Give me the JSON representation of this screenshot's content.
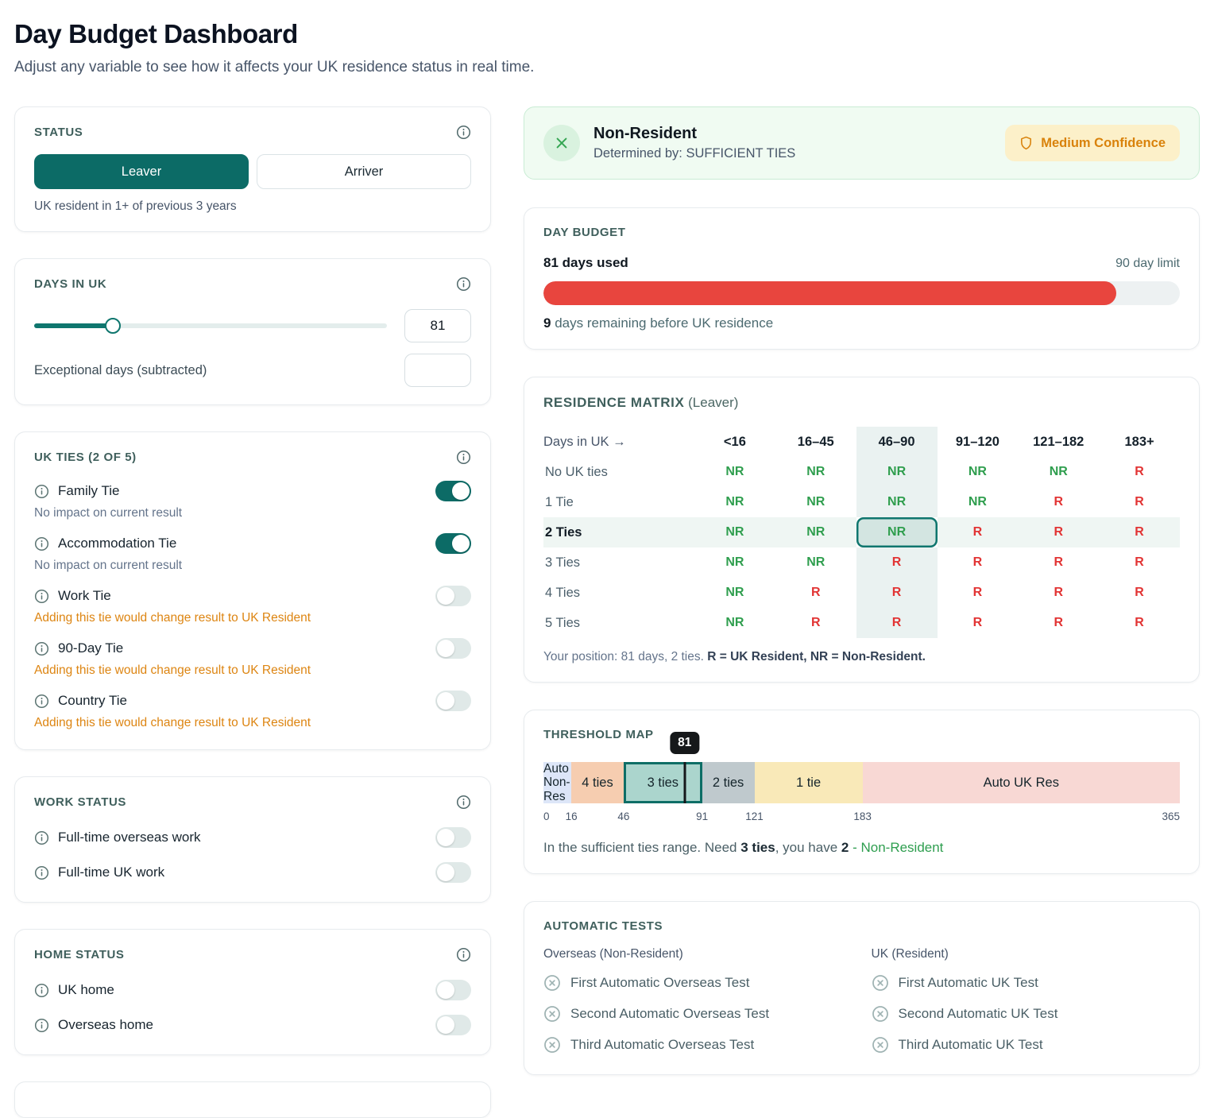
{
  "page": {
    "title": "Day Budget Dashboard",
    "subtitle": "Adjust any variable to see how it affects your UK residence status in real time."
  },
  "colors": {
    "accent_teal": "#0c6b66",
    "warning_orange": "#dd8512",
    "positive_green": "#2f9e4e",
    "negative_red": "#e23434",
    "budget_bar_red": "#e8453e",
    "badge_bg": "#fcf0c9",
    "badge_text": "#d9820b",
    "banner_bg": "#f0fbf2"
  },
  "status_card": {
    "title": "STATUS",
    "options": {
      "leaver": "Leaver",
      "arriver": "Arriver"
    },
    "selected": "Leaver",
    "note": "UK resident in 1+ of previous 3 years"
  },
  "days_card": {
    "title": "DAYS IN UK",
    "value": 81,
    "value_str": "81",
    "max": 365,
    "exceptional_label": "Exceptional days (subtracted)"
  },
  "ties_card": {
    "title": "UK TIES (2 OF 5)",
    "items": [
      {
        "label": "Family Tie",
        "on": true,
        "note": "No impact on current result",
        "warn": false
      },
      {
        "label": "Accommodation Tie",
        "on": true,
        "note": "No impact on current result",
        "warn": false
      },
      {
        "label": "Work Tie",
        "on": false,
        "note": "Adding this tie would change result to UK Resident",
        "warn": true
      },
      {
        "label": "90-Day Tie",
        "on": false,
        "note": "Adding this tie would change result to UK Resident",
        "warn": true
      },
      {
        "label": "Country Tie",
        "on": false,
        "note": "Adding this tie would change result to UK Resident",
        "warn": true
      }
    ]
  },
  "work_card": {
    "title": "WORK STATUS",
    "items": [
      {
        "label": "Full-time overseas work",
        "on": false
      },
      {
        "label": "Full-time UK work",
        "on": false
      }
    ]
  },
  "home_card": {
    "title": "HOME STATUS",
    "items": [
      {
        "label": "UK home",
        "on": false
      },
      {
        "label": "Overseas home",
        "on": false
      }
    ]
  },
  "result_banner": {
    "title": "Non-Resident",
    "subtitle": "Determined by: SUFFICIENT TIES",
    "badge": "Medium Confidence"
  },
  "day_budget": {
    "title": "DAY BUDGET",
    "used": 81,
    "limit": 90,
    "used_label": "81 days used",
    "limit_label": "90 day limit",
    "remaining_value": "9",
    "remaining_text": " days remaining before UK residence"
  },
  "matrix": {
    "title": "RESIDENCE MATRIX",
    "title_suffix": " (Leaver)",
    "corner": "Days in UK →",
    "columns": [
      "<16",
      "16–45",
      "46–90",
      "91–120",
      "121–182",
      "183+"
    ],
    "rows": [
      {
        "label": "No UK ties",
        "cells": [
          "NR",
          "NR",
          "NR",
          "NR",
          "NR",
          "R"
        ]
      },
      {
        "label": "1 Tie",
        "cells": [
          "NR",
          "NR",
          "NR",
          "NR",
          "R",
          "R"
        ]
      },
      {
        "label": "2 Ties",
        "cells": [
          "NR",
          "NR",
          "NR",
          "R",
          "R",
          "R"
        ]
      },
      {
        "label": "3 Ties",
        "cells": [
          "NR",
          "NR",
          "R",
          "R",
          "R",
          "R"
        ]
      },
      {
        "label": "4 Ties",
        "cells": [
          "NR",
          "R",
          "R",
          "R",
          "R",
          "R"
        ]
      },
      {
        "label": "5 Ties",
        "cells": [
          "NR",
          "R",
          "R",
          "R",
          "R",
          "R"
        ]
      }
    ],
    "highlight_column": 2,
    "highlight_row": 2,
    "selected_cell": {
      "row": 2,
      "col": 2
    },
    "footnote_gray": "Your position: 81 days, 2 ties. ",
    "footnote_dark": "R = UK Resident, NR = Non-Resident."
  },
  "threshold": {
    "title": "THRESHOLD MAP",
    "tooltip": "81",
    "marker_day": 81,
    "total": 365,
    "segments": [
      {
        "label": "Auto Non-Res",
        "from": 0,
        "to": 16,
        "color": "#dde6f8",
        "selected": false
      },
      {
        "label": "4 ties",
        "from": 16,
        "to": 46,
        "color": "#f6cdb0",
        "selected": false
      },
      {
        "label": "3 ties",
        "from": 46,
        "to": 91,
        "color": "#abd5cd",
        "selected": true
      },
      {
        "label": "2 ties",
        "from": 91,
        "to": 121,
        "color": "#bfc9cd",
        "selected": false
      },
      {
        "label": "1 tie",
        "from": 121,
        "to": 183,
        "color": "#f9e9b8",
        "selected": false
      },
      {
        "label": "Auto UK Res",
        "from": 183,
        "to": 365,
        "color": "#f8d8d4",
        "selected": false
      }
    ],
    "axis": [
      0,
      16,
      46,
      91,
      121,
      183,
      365
    ],
    "caption": {
      "p1": "In the sufficient ties range. Need ",
      "p2": "3 ties",
      "p3": ", you have ",
      "p4": "2",
      "p5": " - Non-Resident"
    }
  },
  "auto_tests": {
    "title": "AUTOMATIC TESTS",
    "groups": [
      {
        "heading": "Overseas (Non-Resident)",
        "items": [
          "First Automatic Overseas Test",
          "Second Automatic Overseas Test",
          "Third Automatic Overseas Test"
        ]
      },
      {
        "heading": "UK (Resident)",
        "items": [
          "First Automatic UK Test",
          "Second Automatic UK Test",
          "Third Automatic UK Test"
        ]
      }
    ]
  }
}
